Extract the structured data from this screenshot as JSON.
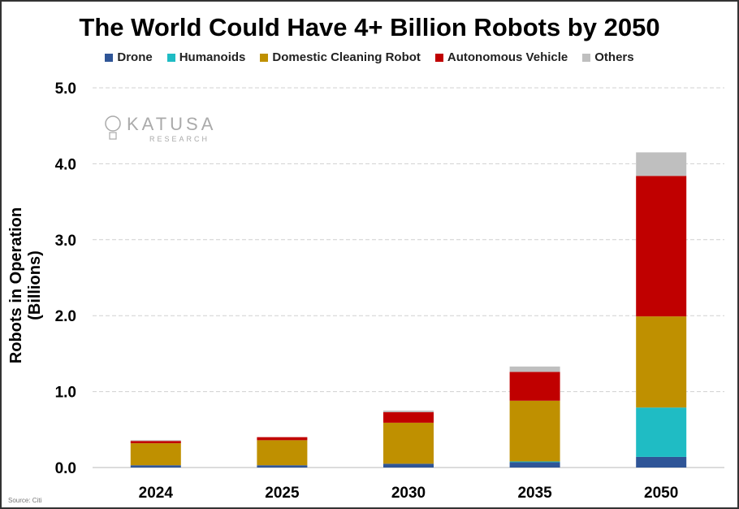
{
  "chart_data": {
    "type": "bar",
    "stacked": true,
    "title": "The World Could Have 4+ Billion Robots by 2050",
    "xlabel": "",
    "ylabel": "Robots in Operation (Billions)",
    "ylim": [
      0,
      5
    ],
    "yticks": [
      "0.0",
      "1.0",
      "2.0",
      "3.0",
      "4.0",
      "5.0"
    ],
    "grid": true,
    "legend_position": "top",
    "categories": [
      "2024",
      "2025",
      "2030",
      "2035",
      "2050"
    ],
    "series": [
      {
        "name": "Drone",
        "color": "#2f5597",
        "values": [
          0.03,
          0.03,
          0.05,
          0.07,
          0.14
        ]
      },
      {
        "name": "Humanoids",
        "color": "#1fbcc4",
        "values": [
          0,
          0,
          0,
          0.01,
          0.65
        ]
      },
      {
        "name": "Domestic Cleaning Robot",
        "color": "#bf9000",
        "values": [
          0.29,
          0.33,
          0.54,
          0.8,
          1.2
        ]
      },
      {
        "name": "Autonomous Vehicle",
        "color": "#c00000",
        "values": [
          0.03,
          0.04,
          0.14,
          0.38,
          1.85
        ]
      },
      {
        "name": "Others",
        "color": "#bfbfbf",
        "values": [
          0.01,
          0.0,
          0.02,
          0.07,
          0.31
        ]
      }
    ]
  },
  "logo": {
    "name": "KATUSA",
    "sub": "RESEARCH"
  },
  "source": "Source: Citi"
}
